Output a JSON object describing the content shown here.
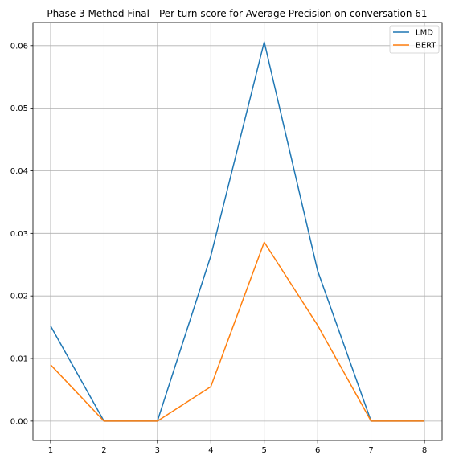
{
  "chart_data": {
    "type": "line",
    "title": "Phase 3 Method Final - Per turn score for Average Precision on conversation 61",
    "xlabel": "",
    "ylabel": "",
    "x": [
      1,
      2,
      3,
      4,
      5,
      6,
      7,
      8
    ],
    "x_ticks": [
      "1",
      "2",
      "3",
      "4",
      "5",
      "6",
      "7",
      "8"
    ],
    "y_ticks": [
      "0.00",
      "0.01",
      "0.02",
      "0.03",
      "0.04",
      "0.05",
      "0.06"
    ],
    "xlim": [
      0.67,
      8.33
    ],
    "ylim": [
      -0.0031,
      0.0637
    ],
    "grid": true,
    "legend_position": "top-right",
    "series": [
      {
        "name": "LMD",
        "color": "#1f77b4",
        "values": [
          0.0152,
          0.0,
          0.0,
          0.0264,
          0.0606,
          0.024,
          0.0,
          0.0
        ]
      },
      {
        "name": "BERT",
        "color": "#ff7f0e",
        "values": [
          0.009,
          0.0,
          0.0,
          0.0055,
          0.0286,
          0.0153,
          0.0,
          0.0
        ]
      }
    ]
  }
}
